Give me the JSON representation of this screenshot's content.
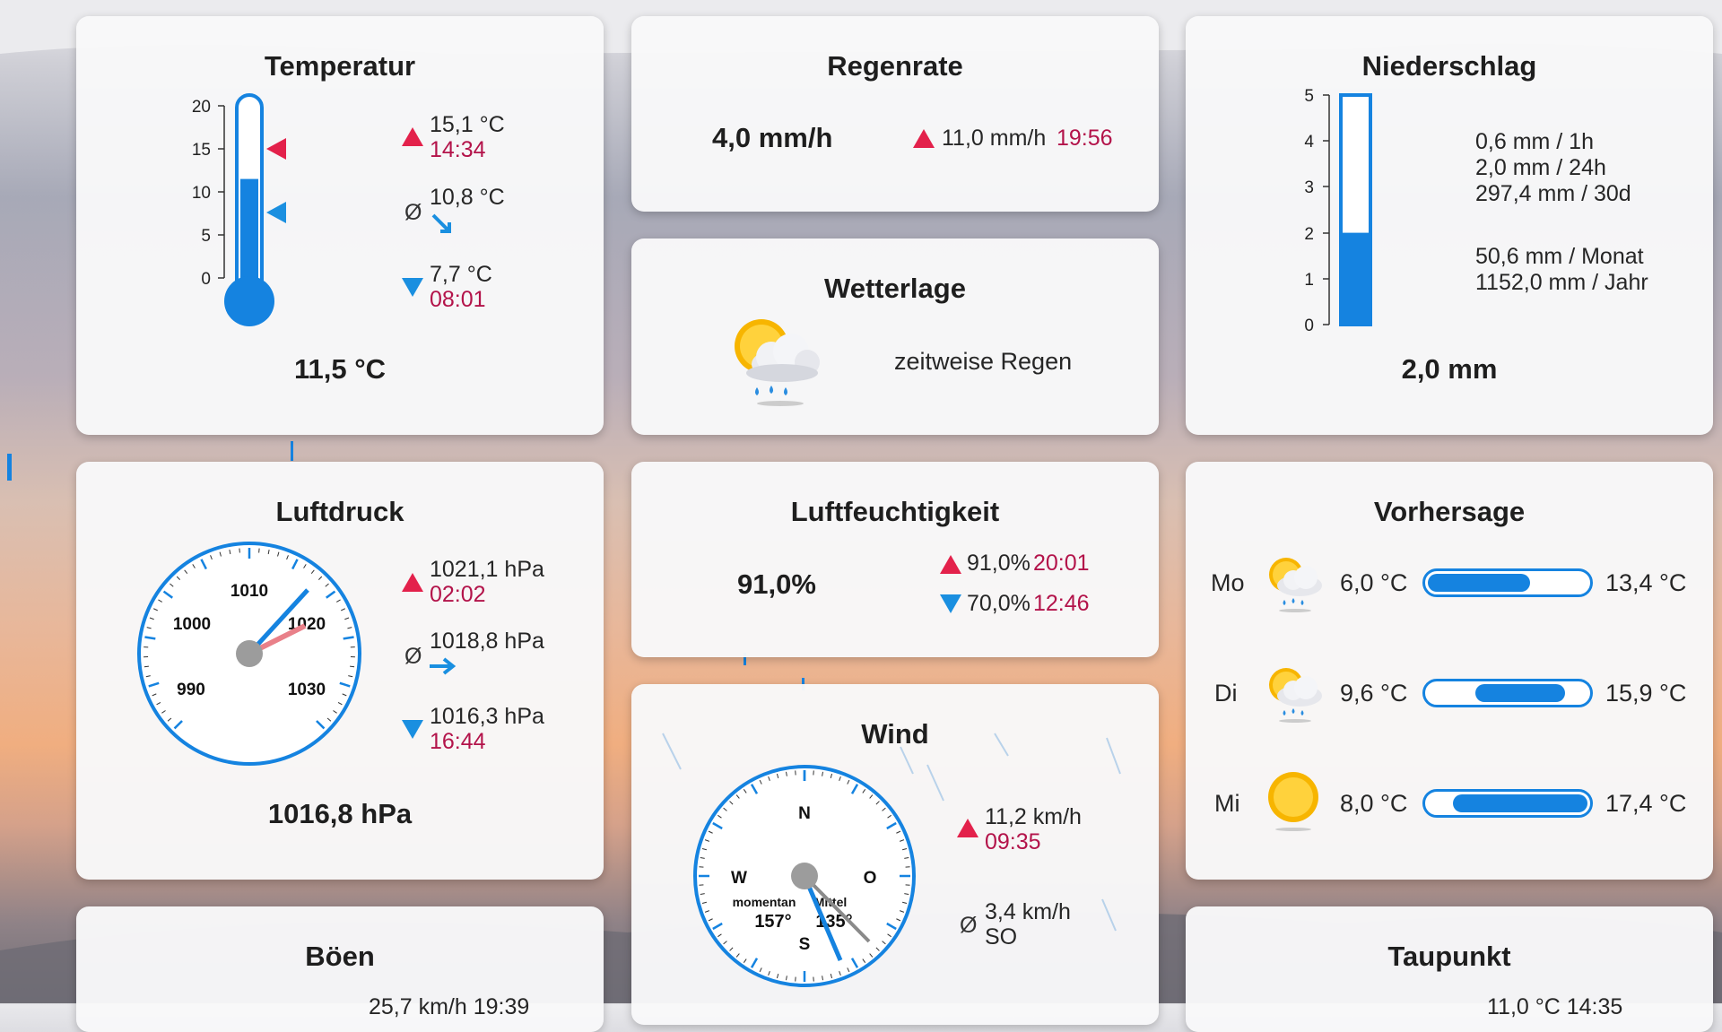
{
  "temperature": {
    "title": "Temperatur",
    "current": "11,5 °C",
    "scale_ticks": [
      "20",
      "15",
      "10",
      "5",
      "0"
    ],
    "fill_fraction": 0.575,
    "max_value": "15,1 °C",
    "max_time": "14:34",
    "avg_symbol": "Ø",
    "avg_value": "10,8 °C",
    "min_value": "7,7 °C",
    "min_time": "08:01"
  },
  "rainrate": {
    "title": "Regenrate",
    "current": "4,0 mm/h",
    "max_value": "11,0 mm/h",
    "max_time": "19:56"
  },
  "weather": {
    "title": "Wetterlage",
    "icon": "sun-cloud-rain-icon",
    "description": "zeitweise Regen"
  },
  "precipitation": {
    "title": "Niederschlag",
    "current": "2,0 mm",
    "scale_ticks": [
      "5",
      "4",
      "3",
      "2",
      "1",
      "0"
    ],
    "fill_fraction": 0.4,
    "rows": [
      "0,6 mm  / 1h",
      "2,0 mm  / 24h",
      "297,4 mm  / 30d"
    ],
    "rows2": [
      "50,6 mm  / Monat",
      "1152,0 mm  / Jahr"
    ]
  },
  "pressure": {
    "title": "Luftdruck",
    "current": "1016,8 hPa",
    "dial_labels": [
      "990",
      "1000",
      "1010",
      "1020",
      "1030"
    ],
    "max_value": "1021,1 hPa",
    "max_time": "02:02",
    "avg_symbol": "Ø",
    "avg_value": "1018,8 hPa",
    "min_value": "1016,3 hPa",
    "min_time": "16:44"
  },
  "humidity": {
    "title": "Luftfeuchtigkeit",
    "current": "91,0%",
    "max_value": "91,0%",
    "max_time": "20:01",
    "min_value": "70,0%",
    "min_time": "12:46"
  },
  "forecast": {
    "title": "Vorhersage",
    "days": [
      {
        "day": "Mo",
        "icon": "sun-cloud-rain-icon",
        "low": "6,0 °C",
        "high": "13,4 °C",
        "range_start": 0.0,
        "range_end": 0.64
      },
      {
        "day": "Di",
        "icon": "sun-cloud-rain-icon",
        "low": "9,6 °C",
        "high": "15,9 °C",
        "range_start": 0.3,
        "range_end": 0.86
      },
      {
        "day": "Mi",
        "icon": "sun-icon",
        "low": "8,0 °C",
        "high": "17,4 °C",
        "range_start": 0.16,
        "range_end": 1.0
      }
    ]
  },
  "wind": {
    "title": "Wind",
    "compass": {
      "n": "N",
      "o": "O",
      "s": "S",
      "w": "W"
    },
    "momentan_label": "momentan",
    "momentan_value": "157°",
    "mittel_label": "Mittel",
    "mittel_value": "135°",
    "max_value": "11,2 km/h",
    "max_time": "09:35",
    "avg_symbol": "Ø",
    "avg_value": "3,4 km/h",
    "avg_dir": "SO"
  },
  "gusts": {
    "title": "Böen",
    "partial_text": "25,7 km/h 19:39"
  },
  "dewpoint": {
    "title": "Taupunkt",
    "partial_text": "11,0 °C 14:35"
  },
  "colors": {
    "accent": "#1583e0",
    "red": "#e3214b",
    "time": "#b3134a"
  }
}
